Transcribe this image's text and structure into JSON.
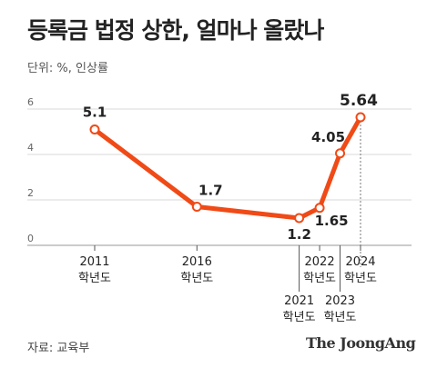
{
  "header": {
    "title": "등록금 법정 상한, 얼마나 올랐나",
    "unit": "단위: %, 인상률"
  },
  "footer": {
    "source": "자료: 교육부",
    "brand": "The JoongAng"
  },
  "colors": {
    "line": "#f04a17",
    "grid": "#d8d8d8",
    "text": "#222222"
  },
  "chart_data": {
    "type": "line",
    "title": "등록금 법정 상한, 얼마나 올랐나",
    "ylim": [
      0,
      6
    ],
    "yticks": [
      0,
      2,
      4,
      6
    ],
    "grid": true,
    "x": [
      "2011",
      "2016",
      "2021",
      "2022",
      "2023",
      "2024"
    ],
    "x_labels": [
      [
        "2011",
        "학년도"
      ],
      [
        "2016",
        "학년도"
      ],
      [
        "2021",
        "학년도"
      ],
      [
        "2022",
        "학년도"
      ],
      [
        "2023",
        "학년도"
      ],
      [
        "2024",
        "학년도"
      ]
    ],
    "series": [
      {
        "values": [
          5.1,
          1.7,
          1.2,
          1.65,
          4.05,
          5.64
        ]
      }
    ],
    "value_labels": [
      "5.1",
      "1.7",
      "1.2",
      "1.65",
      "4.05",
      "5.64"
    ]
  }
}
